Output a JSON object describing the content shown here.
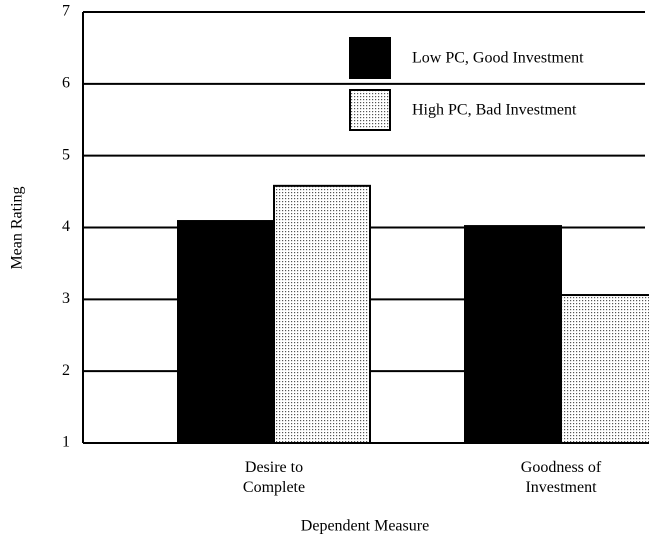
{
  "chart_data": {
    "type": "bar",
    "x_label": "Dependent Measure",
    "y_label": "Mean Rating",
    "categories": [
      "Desire to Complete",
      "Goodness of Investment"
    ],
    "series": [
      {
        "name": "Low PC, Good Investment",
        "color": "#000000",
        "values": [
          4.09,
          4.02
        ]
      },
      {
        "name": "High PC, Bad Investment",
        "color": "#555555",
        "pattern": "dots",
        "values": [
          4.58,
          3.06
        ]
      }
    ],
    "ylim": [
      1,
      7
    ],
    "yticks": [
      1,
      2,
      3,
      4,
      5,
      6,
      7
    ],
    "grid": true
  }
}
